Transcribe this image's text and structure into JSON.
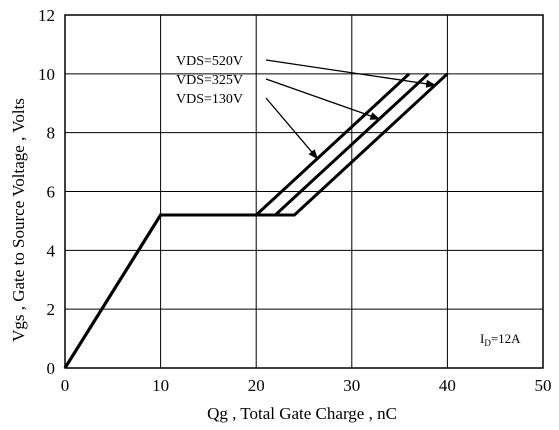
{
  "chart_data": {
    "type": "line",
    "title": "",
    "xlabel": "Qg , Total Gate Charge , nC",
    "ylabel": "Vgs , Gate to Source Voltage , Volts",
    "xlim": [
      0,
      50
    ],
    "ylim": [
      0,
      12
    ],
    "x_ticks": [
      "0",
      "10",
      "20",
      "30",
      "40",
      "50"
    ],
    "y_ticks": [
      "0",
      "2",
      "4",
      "6",
      "8",
      "10",
      "12"
    ],
    "grid": true,
    "legend_position": "top-center, with arrows pointing to curves",
    "series": [
      {
        "name": "VDS=520V",
        "x": [
          0,
          10,
          24,
          40
        ],
        "y": [
          0,
          5.2,
          5.2,
          10
        ]
      },
      {
        "name": "VDS=325V",
        "x": [
          0,
          10,
          22,
          38
        ],
        "y": [
          0,
          5.2,
          5.2,
          10
        ]
      },
      {
        "name": "VDS=130V",
        "x": [
          0,
          10,
          20,
          36
        ],
        "y": [
          0,
          5.2,
          5.2,
          10
        ]
      }
    ],
    "annotations": [
      {
        "text_main": "I",
        "text_sub": "D",
        "text_rest": "=12A"
      }
    ]
  }
}
